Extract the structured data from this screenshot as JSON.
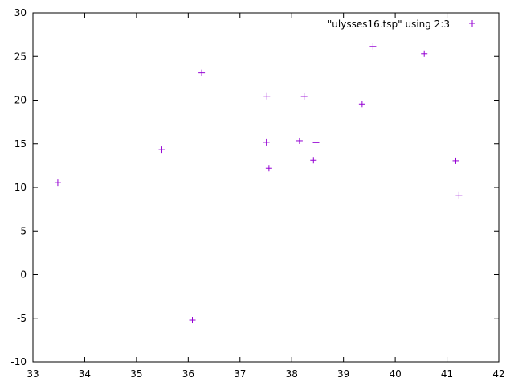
{
  "chart_data": {
    "type": "scatter",
    "title": "",
    "xlabel": "",
    "ylabel": "",
    "xlim": [
      33,
      42
    ],
    "ylim": [
      -10,
      30
    ],
    "xticks": [
      33,
      34,
      35,
      36,
      37,
      38,
      39,
      40,
      41,
      42
    ],
    "yticks": [
      -10,
      -5,
      0,
      5,
      10,
      15,
      20,
      25,
      30
    ],
    "grid": false,
    "legend_position": "top-right",
    "marker": "plus",
    "series": [
      {
        "name": "\"ulysses16.tsp\" using 2:3",
        "color": "#9400d3",
        "points": [
          {
            "x": 38.24,
            "y": 20.42
          },
          {
            "x": 39.57,
            "y": 26.15
          },
          {
            "x": 40.56,
            "y": 25.32
          },
          {
            "x": 36.26,
            "y": 23.12
          },
          {
            "x": 33.48,
            "y": 10.54
          },
          {
            "x": 37.56,
            "y": 12.19
          },
          {
            "x": 38.42,
            "y": 13.11
          },
          {
            "x": 37.52,
            "y": 20.44
          },
          {
            "x": 41.23,
            "y": 9.1
          },
          {
            "x": 41.17,
            "y": 13.05
          },
          {
            "x": 36.08,
            "y": -5.21
          },
          {
            "x": 38.47,
            "y": 15.13
          },
          {
            "x": 38.15,
            "y": 15.35
          },
          {
            "x": 37.51,
            "y": 15.17
          },
          {
            "x": 35.49,
            "y": 14.32
          },
          {
            "x": 39.36,
            "y": 19.56
          }
        ]
      }
    ]
  }
}
